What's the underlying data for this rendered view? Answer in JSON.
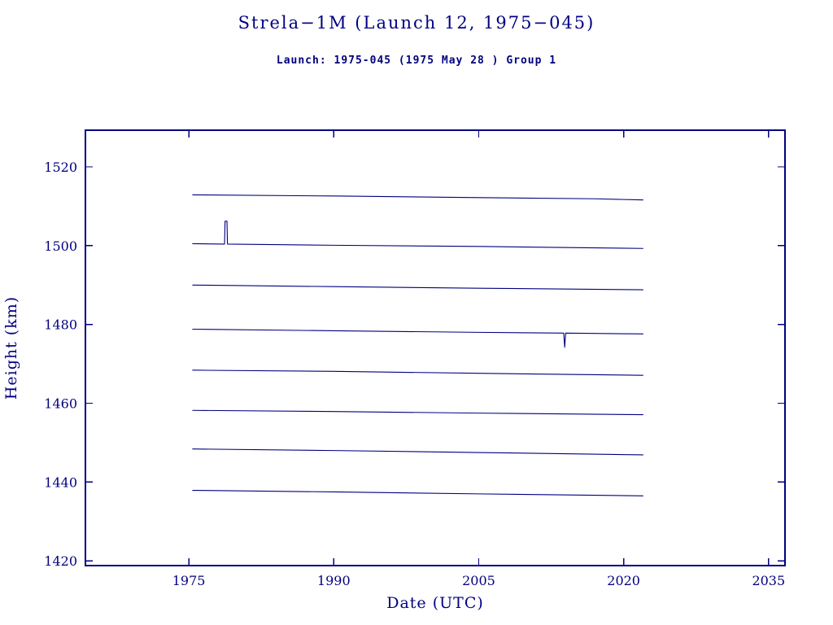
{
  "chart_data": {
    "type": "line",
    "title": "Strela−1M (Launch 12, 1975−045)",
    "subtitle": "Launch: 1975-045  (1975 May 28 )  Group 1",
    "xlabel": "Date (UTC)",
    "ylabel": "Height (km)",
    "xlim": [
      1964.3,
      2036.7
    ],
    "ylim": [
      1418.8,
      1529.3
    ],
    "xticks": [
      1975,
      1990,
      2005,
      2020,
      2035
    ],
    "yticks": [
      1420,
      1440,
      1460,
      1480,
      1500,
      1520
    ],
    "line_color": "#000080",
    "axis_color": "#000080",
    "background_color": "#ffffff",
    "grid": false,
    "legend": "none",
    "series": [
      {
        "name": "line-1",
        "points": [
          [
            1975.4,
            1512.9
          ],
          [
            1990,
            1512.6
          ],
          [
            2005,
            1512.2
          ],
          [
            2017,
            1511.9
          ],
          [
            2022,
            1511.6
          ]
        ]
      },
      {
        "name": "line-2",
        "points": [
          [
            1975.4,
            1500.5
          ],
          [
            1978.7,
            1500.4
          ],
          [
            1978.75,
            1506.2
          ],
          [
            1978.95,
            1506.2
          ],
          [
            1979.0,
            1500.4
          ],
          [
            1990,
            1500.1
          ],
          [
            2005,
            1499.8
          ],
          [
            2022,
            1499.3
          ]
        ]
      },
      {
        "name": "line-3",
        "points": [
          [
            1975.4,
            1490.0
          ],
          [
            1990,
            1489.6
          ],
          [
            2005,
            1489.2
          ],
          [
            2022,
            1488.8
          ]
        ]
      },
      {
        "name": "line-4",
        "points": [
          [
            1975.4,
            1478.8
          ],
          [
            1990,
            1478.4
          ],
          [
            2005,
            1478.0
          ],
          [
            2013.8,
            1477.8
          ],
          [
            2013.9,
            1474.2
          ],
          [
            2014.0,
            1477.8
          ],
          [
            2022,
            1477.6
          ]
        ]
      },
      {
        "name": "line-5",
        "points": [
          [
            1975.4,
            1468.4
          ],
          [
            1990,
            1468.1
          ],
          [
            2005,
            1467.6
          ],
          [
            2022,
            1467.1
          ]
        ]
      },
      {
        "name": "line-6",
        "points": [
          [
            1975.4,
            1458.2
          ],
          [
            1990,
            1457.9
          ],
          [
            2005,
            1457.5
          ],
          [
            2022,
            1457.1
          ]
        ]
      },
      {
        "name": "line-7",
        "points": [
          [
            1975.4,
            1448.4
          ],
          [
            1990,
            1448.0
          ],
          [
            2005,
            1447.5
          ],
          [
            2022,
            1446.9
          ]
        ]
      },
      {
        "name": "line-8",
        "points": [
          [
            1975.4,
            1437.9
          ],
          [
            1990,
            1437.5
          ],
          [
            2005,
            1437.0
          ],
          [
            2022,
            1436.5
          ]
        ]
      }
    ]
  }
}
